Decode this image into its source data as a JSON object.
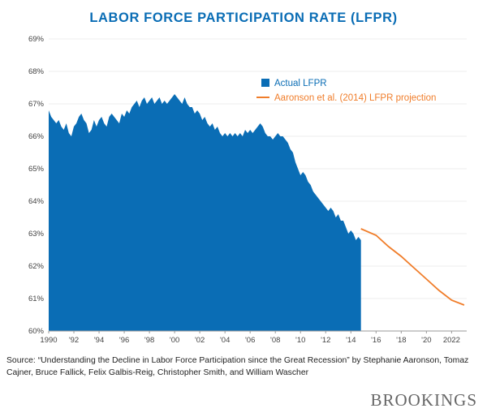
{
  "title": "LABOR FORCE PARTICIPATION RATE (LFPR)",
  "source": "Source: “Understanding the Decline in Labor Force Participation since the Great Recession” by Stephanie Aaronson, Tomaz Cajner, Bruce Fallick, Felix Galbis-Reig, Christopher Smith, and William Wascher",
  "brand": "BROOKINGS",
  "chart_data": {
    "type": "area",
    "title": "LABOR FORCE PARTICIPATION RATE (LFPR)",
    "xlabel": "",
    "ylabel": "",
    "xlim": [
      1990,
      2023.2
    ],
    "ylim": [
      60,
      69
    ],
    "y_ticks": [
      60,
      61,
      62,
      63,
      64,
      65,
      66,
      67,
      68,
      69
    ],
    "y_tick_labels": [
      "60%",
      "61%",
      "62%",
      "63%",
      "64%",
      "65%",
      "66%",
      "67%",
      "68%",
      "69%"
    ],
    "x_ticks": [
      1990,
      1992,
      1994,
      1996,
      1998,
      2000,
      2002,
      2004,
      2006,
      2008,
      2010,
      2012,
      2014,
      2016,
      2018,
      2020,
      2022
    ],
    "x_tick_labels": [
      "1990",
      "'92",
      "'94",
      "'96",
      "'98",
      "'00",
      "'02",
      "'04",
      "'06",
      "'08",
      "'10",
      "'12",
      "'14",
      "'16",
      "'18",
      "'20",
      "2022"
    ],
    "legend": {
      "position": "top-right",
      "entries": [
        "Actual LFPR",
        "Aaronson et al. (2014) LFPR projection"
      ]
    },
    "series": [
      {
        "name": "Actual LFPR",
        "type": "area",
        "color": "#0a6db5",
        "x": [
          1990.0,
          1990.2,
          1990.4,
          1990.6,
          1990.8,
          1991.0,
          1991.2,
          1991.4,
          1991.6,
          1991.8,
          1992.0,
          1992.2,
          1992.4,
          1992.6,
          1992.8,
          1993.0,
          1993.2,
          1993.4,
          1993.6,
          1993.8,
          1994.0,
          1994.2,
          1994.4,
          1994.6,
          1994.8,
          1995.0,
          1995.2,
          1995.4,
          1995.6,
          1995.8,
          1996.0,
          1996.2,
          1996.4,
          1996.6,
          1996.8,
          1997.0,
          1997.2,
          1997.4,
          1997.6,
          1997.8,
          1998.0,
          1998.2,
          1998.4,
          1998.6,
          1998.8,
          1999.0,
          1999.2,
          1999.4,
          1999.6,
          1999.8,
          2000.0,
          2000.2,
          2000.4,
          2000.6,
          2000.8,
          2001.0,
          2001.2,
          2001.4,
          2001.6,
          2001.8,
          2002.0,
          2002.2,
          2002.4,
          2002.6,
          2002.8,
          2003.0,
          2003.2,
          2003.4,
          2003.6,
          2003.8,
          2004.0,
          2004.2,
          2004.4,
          2004.6,
          2004.8,
          2005.0,
          2005.2,
          2005.4,
          2005.6,
          2005.8,
          2006.0,
          2006.2,
          2006.4,
          2006.6,
          2006.8,
          2007.0,
          2007.2,
          2007.4,
          2007.6,
          2007.8,
          2008.0,
          2008.2,
          2008.4,
          2008.6,
          2008.8,
          2009.0,
          2009.2,
          2009.4,
          2009.6,
          2009.8,
          2010.0,
          2010.2,
          2010.4,
          2010.6,
          2010.8,
          2011.0,
          2011.2,
          2011.4,
          2011.6,
          2011.8,
          2012.0,
          2012.2,
          2012.4,
          2012.6,
          2012.8,
          2013.0,
          2013.2,
          2013.4,
          2013.6,
          2013.8,
          2014.0,
          2014.2,
          2014.4,
          2014.6,
          2014.8
        ],
        "y": [
          66.8,
          66.6,
          66.5,
          66.4,
          66.5,
          66.3,
          66.2,
          66.4,
          66.1,
          66.0,
          66.3,
          66.4,
          66.6,
          66.7,
          66.5,
          66.4,
          66.1,
          66.2,
          66.5,
          66.3,
          66.5,
          66.6,
          66.4,
          66.3,
          66.6,
          66.7,
          66.6,
          66.5,
          66.4,
          66.7,
          66.6,
          66.8,
          66.7,
          66.9,
          67.0,
          67.1,
          66.9,
          67.1,
          67.2,
          67.0,
          67.1,
          67.2,
          67.0,
          67.1,
          67.2,
          67.0,
          67.1,
          67.0,
          67.1,
          67.2,
          67.3,
          67.2,
          67.1,
          67.0,
          67.2,
          67.0,
          66.9,
          66.9,
          66.7,
          66.8,
          66.7,
          66.5,
          66.6,
          66.4,
          66.3,
          66.4,
          66.2,
          66.3,
          66.1,
          66.0,
          66.1,
          66.0,
          66.1,
          66.0,
          66.1,
          66.0,
          66.1,
          66.0,
          66.2,
          66.1,
          66.2,
          66.1,
          66.2,
          66.3,
          66.4,
          66.3,
          66.1,
          66.0,
          66.0,
          65.9,
          66.0,
          66.1,
          66.0,
          66.0,
          65.9,
          65.8,
          65.6,
          65.5,
          65.2,
          65.0,
          64.8,
          64.9,
          64.8,
          64.6,
          64.5,
          64.3,
          64.2,
          64.1,
          64.0,
          63.9,
          63.8,
          63.7,
          63.8,
          63.7,
          63.5,
          63.6,
          63.4,
          63.4,
          63.2,
          63.0,
          63.1,
          63.0,
          62.8,
          62.9,
          62.8
        ]
      },
      {
        "name": "Aaronson et al. (2014) LFPR projection",
        "type": "line",
        "color": "#f07d2a",
        "x": [
          2014.8,
          2016.0,
          2017.0,
          2018.0,
          2019.0,
          2020.0,
          2021.0,
          2022.0,
          2023.0
        ],
        "y": [
          63.15,
          62.95,
          62.6,
          62.3,
          61.95,
          61.6,
          61.25,
          60.95,
          60.8
        ]
      }
    ]
  }
}
